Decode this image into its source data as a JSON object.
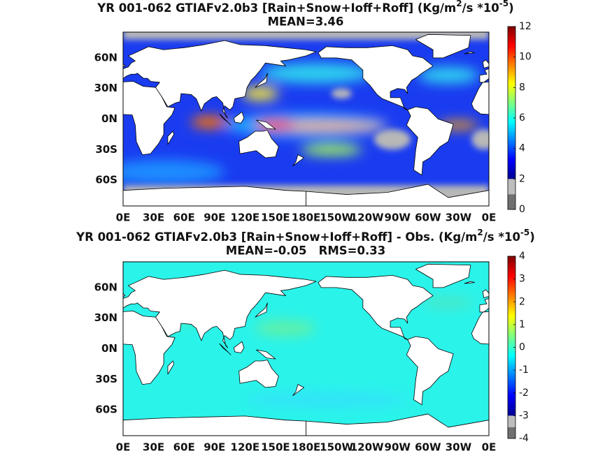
{
  "panels": [
    {
      "title": {
        "text": "YR 001-062 GTIAFv2.0b3 [Rain+Snow+Ioff+Roff] (Kg/m",
        "sup1": "2",
        "mid": "/s *10",
        "sup2": "-5",
        "end": ")"
      },
      "subtitle": "MEAN=3.46",
      "colorbar_ticks": [
        0,
        2,
        4,
        6,
        8,
        10,
        12
      ]
    },
    {
      "title": {
        "text": "YR 001-062 GTIAFv2.0b3 [Rain+Snow+Ioff+Roff] - Obs. (Kg/m",
        "sup1": "2",
        "mid": "/s *10",
        "sup2": "-5",
        "end": ")"
      },
      "subtitle": "MEAN=-0.05   RMS=0.33",
      "colorbar_ticks": [
        -4,
        -3,
        -2,
        -1,
        0,
        1,
        2,
        3,
        4
      ]
    }
  ],
  "lon_labels": [
    "0E",
    "30E",
    "60E",
    "90E",
    "120E",
    "150E",
    "180E",
    "150W",
    "120W",
    "90W",
    "60W",
    "30W",
    "0E"
  ],
  "lat_labels": [
    "60N",
    "30N",
    "0N",
    "30S",
    "60S"
  ]
}
